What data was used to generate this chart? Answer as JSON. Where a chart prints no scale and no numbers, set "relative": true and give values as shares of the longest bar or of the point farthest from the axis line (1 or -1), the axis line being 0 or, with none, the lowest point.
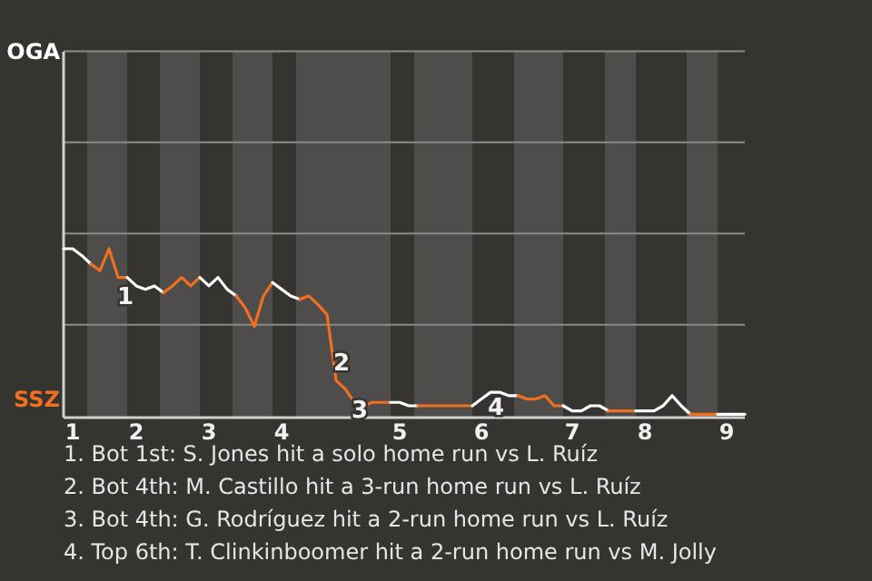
{
  "chart_data": {
    "type": "line",
    "relative": true,
    "categories": [
      null,
      "1",
      null,
      null,
      null,
      null,
      null,
      null,
      "2",
      null,
      null,
      null,
      null,
      null,
      null,
      null,
      "3",
      null,
      null,
      null,
      null,
      null,
      null,
      null,
      "4",
      null,
      null,
      null,
      null,
      null,
      null,
      null,
      null,
      null,
      null,
      null,
      null,
      "5",
      null,
      null,
      null,
      null,
      null,
      null,
      null,
      null,
      "6",
      null,
      null,
      null,
      null,
      null,
      null,
      null,
      null,
      null,
      "7",
      null,
      null,
      null,
      null,
      null,
      null,
      null,
      "8",
      null,
      null,
      null,
      null,
      null,
      null,
      null,
      null,
      "9",
      null,
      null
    ],
    "marker": "none",
    "line_style": "solid",
    "ref_lines": [
      {
        "axis": "y",
        "value": 0.55,
        "color": "#8c8b89"
      },
      {
        "axis": "y",
        "value": 1.09,
        "color": "#8c8b89"
      },
      {
        "axis": "y",
        "value": 1.63,
        "color": "#8c8b89"
      },
      {
        "axis": "y",
        "value": 2.17,
        "color": "#8c8b89"
      }
    ],
    "series": [
      {
        "color": "#ffffff",
        "values": [
          1,
          1,
          0.96,
          0.91,
          null,
          null,
          null,
          null,
          null,
          null,
          null,
          null,
          null,
          null,
          null,
          null,
          null,
          null,
          null,
          null,
          null,
          null,
          null,
          null,
          null,
          null,
          null,
          null,
          null,
          null,
          null,
          null,
          null,
          null,
          null,
          null,
          null,
          null,
          null,
          null,
          null,
          null,
          null,
          null,
          null,
          null,
          null,
          null,
          null,
          null,
          null,
          null,
          null,
          null,
          null,
          null,
          null,
          null,
          null,
          null,
          null,
          null,
          null,
          null,
          null,
          null,
          null,
          null,
          null,
          null,
          null,
          null,
          null,
          null,
          null,
          null
        ]
      },
      {
        "color": "#f07020",
        "values": [
          null,
          null,
          null,
          0.91,
          0.87,
          1,
          0.83,
          0.83,
          null,
          null,
          null,
          null,
          null,
          null,
          null,
          null,
          null,
          null,
          null,
          null,
          null,
          null,
          null,
          null,
          null,
          null,
          null,
          null,
          null,
          null,
          null,
          null,
          null,
          null,
          null,
          null,
          null,
          null,
          null,
          null,
          null,
          null,
          null,
          null,
          null,
          null,
          null,
          null,
          null,
          null,
          null,
          null,
          null,
          null,
          null,
          null,
          null,
          null,
          null,
          null,
          null,
          null,
          null,
          null,
          null,
          null,
          null,
          null,
          null,
          null,
          null,
          null,
          null,
          null,
          null,
          null
        ]
      },
      {
        "color": "#ffffff",
        "values": [
          null,
          null,
          null,
          null,
          null,
          null,
          null,
          0.83,
          0.78,
          0.76,
          0.78,
          0.74,
          null,
          null,
          null,
          null,
          null,
          null,
          null,
          null,
          null,
          null,
          null,
          null,
          null,
          null,
          null,
          null,
          null,
          null,
          null,
          null,
          null,
          null,
          null,
          null,
          null,
          null,
          null,
          null,
          null,
          null,
          null,
          null,
          null,
          null,
          null,
          null,
          null,
          null,
          null,
          null,
          null,
          null,
          null,
          null,
          null,
          null,
          null,
          null,
          null,
          null,
          null,
          null,
          null,
          null,
          null,
          null,
          null,
          null,
          null,
          null,
          null,
          null,
          null,
          null
        ]
      },
      {
        "color": "#f07020",
        "values": [
          null,
          null,
          null,
          null,
          null,
          null,
          null,
          null,
          null,
          null,
          null,
          0.74,
          0.78,
          0.83,
          0.78,
          0.83,
          null,
          null,
          null,
          null,
          null,
          null,
          null,
          null,
          null,
          null,
          null,
          null,
          null,
          null,
          null,
          null,
          null,
          null,
          null,
          null,
          null,
          null,
          null,
          null,
          null,
          null,
          null,
          null,
          null,
          null,
          null,
          null,
          null,
          null,
          null,
          null,
          null,
          null,
          null,
          null,
          null,
          null,
          null,
          null,
          null,
          null,
          null,
          null,
          null,
          null,
          null,
          null,
          null,
          null,
          null,
          null,
          null,
          null,
          null,
          null
        ]
      },
      {
        "color": "#ffffff",
        "values": [
          null,
          null,
          null,
          null,
          null,
          null,
          null,
          null,
          null,
          null,
          null,
          null,
          null,
          null,
          null,
          0.83,
          0.78,
          0.83,
          0.76,
          0.72,
          null,
          null,
          null,
          null,
          null,
          null,
          null,
          null,
          null,
          null,
          null,
          null,
          null,
          null,
          null,
          null,
          null,
          null,
          null,
          null,
          null,
          null,
          null,
          null,
          null,
          null,
          null,
          null,
          null,
          null,
          null,
          null,
          null,
          null,
          null,
          null,
          null,
          null,
          null,
          null,
          null,
          null,
          null,
          null,
          null,
          null,
          null,
          null,
          null,
          null,
          null,
          null,
          null,
          null,
          null,
          null
        ]
      },
      {
        "color": "#f07020",
        "values": [
          null,
          null,
          null,
          null,
          null,
          null,
          null,
          null,
          null,
          null,
          null,
          null,
          null,
          null,
          null,
          null,
          null,
          null,
          null,
          0.72,
          0.65,
          0.54,
          0.72,
          0.8,
          null,
          null,
          null,
          null,
          null,
          null,
          null,
          null,
          null,
          null,
          null,
          null,
          null,
          null,
          null,
          null,
          null,
          null,
          null,
          null,
          null,
          null,
          null,
          null,
          null,
          null,
          null,
          null,
          null,
          null,
          null,
          null,
          null,
          null,
          null,
          null,
          null,
          null,
          null,
          null,
          null,
          null,
          null,
          null,
          null,
          null,
          null,
          null,
          null,
          null,
          null,
          null
        ]
      },
      {
        "color": "#ffffff",
        "values": [
          null,
          null,
          null,
          null,
          null,
          null,
          null,
          null,
          null,
          null,
          null,
          null,
          null,
          null,
          null,
          null,
          null,
          null,
          null,
          null,
          null,
          null,
          null,
          0.8,
          0.76,
          0.72,
          0.7,
          null,
          null,
          null,
          null,
          null,
          null,
          null,
          null,
          null,
          null,
          null,
          null,
          null,
          null,
          null,
          null,
          null,
          null,
          null,
          null,
          null,
          null,
          null,
          null,
          null,
          null,
          null,
          null,
          null,
          null,
          null,
          null,
          null,
          null,
          null,
          null,
          null,
          null,
          null,
          null,
          null,
          null,
          null,
          null,
          null,
          null,
          null,
          null,
          null
        ]
      },
      {
        "color": "#f07020",
        "values": [
          null,
          null,
          null,
          null,
          null,
          null,
          null,
          null,
          null,
          null,
          null,
          null,
          null,
          null,
          null,
          null,
          null,
          null,
          null,
          null,
          null,
          null,
          null,
          null,
          null,
          null,
          0.7,
          0.72,
          0.67,
          0.61,
          0.22,
          0.17,
          0.09,
          0.07,
          0.09,
          0.09,
          0.09,
          null,
          null,
          null,
          null,
          null,
          null,
          null,
          null,
          null,
          null,
          null,
          null,
          null,
          null,
          null,
          null,
          null,
          null,
          null,
          null,
          null,
          null,
          null,
          null,
          null,
          null,
          null,
          null,
          null,
          null,
          null,
          null,
          null,
          null,
          null,
          null,
          null,
          null,
          null
        ]
      },
      {
        "color": "#ffffff",
        "values": [
          null,
          null,
          null,
          null,
          null,
          null,
          null,
          null,
          null,
          null,
          null,
          null,
          null,
          null,
          null,
          null,
          null,
          null,
          null,
          null,
          null,
          null,
          null,
          null,
          null,
          null,
          null,
          null,
          null,
          null,
          null,
          null,
          null,
          null,
          null,
          null,
          0.09,
          0.09,
          0.07,
          0.07,
          null,
          null,
          null,
          null,
          null,
          null,
          null,
          null,
          null,
          null,
          null,
          null,
          null,
          null,
          null,
          null,
          null,
          null,
          null,
          null,
          null,
          null,
          null,
          null,
          null,
          null,
          null,
          null,
          null,
          null,
          null,
          null,
          null,
          null,
          null,
          null
        ]
      },
      {
        "color": "#f07020",
        "values": [
          null,
          null,
          null,
          null,
          null,
          null,
          null,
          null,
          null,
          null,
          null,
          null,
          null,
          null,
          null,
          null,
          null,
          null,
          null,
          null,
          null,
          null,
          null,
          null,
          null,
          null,
          null,
          null,
          null,
          null,
          null,
          null,
          null,
          null,
          null,
          null,
          null,
          null,
          null,
          0.07,
          0.07,
          0.07,
          0.07,
          0.07,
          0.07,
          0.07,
          null,
          null,
          null,
          null,
          null,
          null,
          null,
          null,
          null,
          null,
          null,
          null,
          null,
          null,
          null,
          null,
          null,
          null,
          null,
          null,
          null,
          null,
          null,
          null,
          null,
          null,
          null,
          null,
          null,
          null
        ]
      },
      {
        "color": "#ffffff",
        "values": [
          null,
          null,
          null,
          null,
          null,
          null,
          null,
          null,
          null,
          null,
          null,
          null,
          null,
          null,
          null,
          null,
          null,
          null,
          null,
          null,
          null,
          null,
          null,
          null,
          null,
          null,
          null,
          null,
          null,
          null,
          null,
          null,
          null,
          null,
          null,
          null,
          null,
          null,
          null,
          null,
          null,
          null,
          null,
          null,
          null,
          0.07,
          0.11,
          0.15,
          0.15,
          0.13,
          0.13,
          null,
          null,
          null,
          null,
          null,
          null,
          null,
          null,
          null,
          null,
          null,
          null,
          null,
          null,
          null,
          null,
          null,
          null,
          null,
          null,
          null,
          null,
          null,
          null,
          null
        ]
      },
      {
        "color": "#f07020",
        "values": [
          null,
          null,
          null,
          null,
          null,
          null,
          null,
          null,
          null,
          null,
          null,
          null,
          null,
          null,
          null,
          null,
          null,
          null,
          null,
          null,
          null,
          null,
          null,
          null,
          null,
          null,
          null,
          null,
          null,
          null,
          null,
          null,
          null,
          null,
          null,
          null,
          null,
          null,
          null,
          null,
          null,
          null,
          null,
          null,
          null,
          null,
          null,
          null,
          null,
          null,
          0.13,
          0.11,
          0.11,
          0.13,
          0.07,
          0.07,
          null,
          null,
          null,
          null,
          null,
          null,
          null,
          null,
          null,
          null,
          null,
          null,
          null,
          null,
          null,
          null,
          null,
          null,
          null,
          null
        ]
      },
      {
        "color": "#ffffff",
        "values": [
          null,
          null,
          null,
          null,
          null,
          null,
          null,
          null,
          null,
          null,
          null,
          null,
          null,
          null,
          null,
          null,
          null,
          null,
          null,
          null,
          null,
          null,
          null,
          null,
          null,
          null,
          null,
          null,
          null,
          null,
          null,
          null,
          null,
          null,
          null,
          null,
          null,
          null,
          null,
          null,
          null,
          null,
          null,
          null,
          null,
          null,
          null,
          null,
          null,
          null,
          null,
          null,
          null,
          null,
          null,
          0.07,
          0.04,
          0.04,
          0.07,
          0.07,
          0.04,
          null,
          null,
          null,
          null,
          null,
          null,
          null,
          null,
          null,
          null,
          null,
          null,
          null,
          null,
          null
        ]
      },
      {
        "color": "#f07020",
        "values": [
          null,
          null,
          null,
          null,
          null,
          null,
          null,
          null,
          null,
          null,
          null,
          null,
          null,
          null,
          null,
          null,
          null,
          null,
          null,
          null,
          null,
          null,
          null,
          null,
          null,
          null,
          null,
          null,
          null,
          null,
          null,
          null,
          null,
          null,
          null,
          null,
          null,
          null,
          null,
          null,
          null,
          null,
          null,
          null,
          null,
          null,
          null,
          null,
          null,
          null,
          null,
          null,
          null,
          null,
          null,
          null,
          null,
          null,
          null,
          null,
          0.04,
          0.04,
          0.04,
          0.04,
          null,
          null,
          null,
          null,
          null,
          null,
          null,
          null,
          null,
          null,
          null,
          null
        ]
      },
      {
        "color": "#ffffff",
        "values": [
          null,
          null,
          null,
          null,
          null,
          null,
          null,
          null,
          null,
          null,
          null,
          null,
          null,
          null,
          null,
          null,
          null,
          null,
          null,
          null,
          null,
          null,
          null,
          null,
          null,
          null,
          null,
          null,
          null,
          null,
          null,
          null,
          null,
          null,
          null,
          null,
          null,
          null,
          null,
          null,
          null,
          null,
          null,
          null,
          null,
          null,
          null,
          null,
          null,
          null,
          null,
          null,
          null,
          null,
          null,
          null,
          null,
          null,
          null,
          null,
          null,
          null,
          null,
          0.04,
          0.04,
          0.04,
          0.07,
          0.13,
          0.07,
          0.02,
          null,
          null,
          null,
          null,
          null,
          null
        ]
      },
      {
        "color": "#f07020",
        "values": [
          null,
          null,
          null,
          null,
          null,
          null,
          null,
          null,
          null,
          null,
          null,
          null,
          null,
          null,
          null,
          null,
          null,
          null,
          null,
          null,
          null,
          null,
          null,
          null,
          null,
          null,
          null,
          null,
          null,
          null,
          null,
          null,
          null,
          null,
          null,
          null,
          null,
          null,
          null,
          null,
          null,
          null,
          null,
          null,
          null,
          null,
          null,
          null,
          null,
          null,
          null,
          null,
          null,
          null,
          null,
          null,
          null,
          null,
          null,
          null,
          null,
          null,
          null,
          null,
          null,
          null,
          null,
          null,
          null,
          0.02,
          0.02,
          0.02,
          0.02,
          null,
          null,
          null
        ]
      },
      {
        "color": "#ffffff",
        "values": [
          null,
          null,
          null,
          null,
          null,
          null,
          null,
          null,
          null,
          null,
          null,
          null,
          null,
          null,
          null,
          null,
          null,
          null,
          null,
          null,
          null,
          null,
          null,
          null,
          null,
          null,
          null,
          null,
          null,
          null,
          null,
          null,
          null,
          null,
          null,
          null,
          null,
          null,
          null,
          null,
          null,
          null,
          null,
          null,
          null,
          null,
          null,
          null,
          null,
          null,
          null,
          null,
          null,
          null,
          null,
          null,
          null,
          null,
          null,
          null,
          null,
          null,
          null,
          null,
          null,
          null,
          null,
          null,
          null,
          null,
          null,
          null,
          0.02,
          0.02,
          0.02,
          0.02
        ]
      }
    ],
    "annotations": [
      "OGA",
      "SSZ",
      "1",
      "2",
      "3",
      "4",
      "1. Bot 1st: S. Jones hit a solo home run vs L. Ruíz",
      "2. Bot 4th: M. Castillo hit a 3-run home run vs L. Ruíz",
      "3. Bot 4th: G. Rodríguez hit a 2-run home run vs L. Ruíz",
      "4. Top 6th: T. Clinkinboomer hit a 2-run home run vs M. Jolly"
    ]
  }
}
